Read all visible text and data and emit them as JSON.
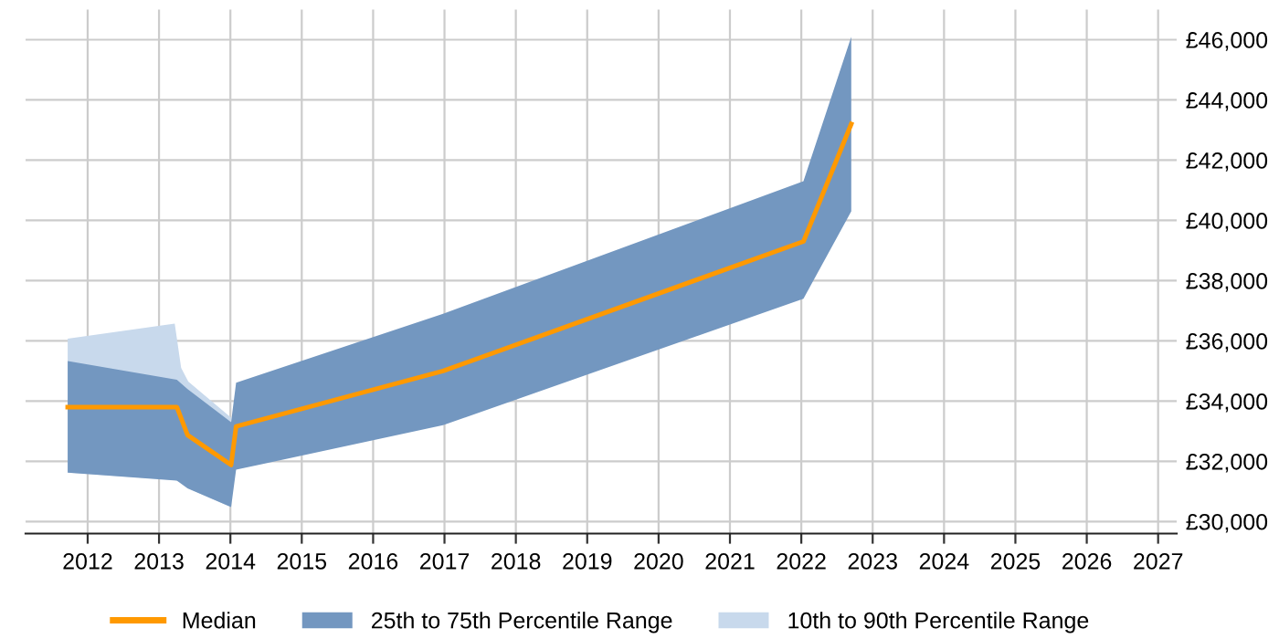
{
  "chart_data": {
    "type": "line",
    "series": [
      {
        "name": "10th to 90th Percentile Range",
        "type": "area",
        "color": "#c8d9ec",
        "x": [
          2011.72,
          2013.22,
          2013.31,
          2013.41,
          2014.01
        ],
        "values": [
          null,
          null,
          null,
          null,
          null
        ],
        "lower": [
          31620,
          31380,
          31300,
          31100,
          30480
        ],
        "upper": [
          36070,
          36570,
          35100,
          34650,
          33450
        ]
      },
      {
        "name": "25th to 75th Percentile Range",
        "type": "area",
        "color": "#7397c0",
        "x": [
          2011.72,
          2013.25,
          2013.4,
          2014.01,
          2014.08,
          2016.98,
          2022.03,
          2022.7
        ],
        "values": [
          null,
          null,
          null,
          null,
          null,
          null,
          null,
          null
        ],
        "lower": [
          31620,
          31360,
          31100,
          30480,
          31720,
          33200,
          37400,
          40300
        ],
        "upper": [
          35330,
          34710,
          34400,
          33300,
          34610,
          36900,
          41300,
          46100
        ]
      },
      {
        "name": "Median",
        "color": "#ff9900",
        "x": [
          2011.72,
          2013.25,
          2013.4,
          2014.01,
          2014.08,
          2016.98,
          2022.03,
          2022.7
        ],
        "values": [
          33800,
          33800,
          32870,
          31880,
          33160,
          35000,
          39300,
          43200
        ]
      }
    ],
    "xlim": [
      2011.13,
      2027.26
    ],
    "xticks": [
      2012,
      2013,
      2014,
      2015,
      2016,
      2017,
      2018,
      2019,
      2020,
      2021,
      2022,
      2023,
      2024,
      2025,
      2026,
      2027
    ],
    "ylim": [
      29600,
      47000
    ],
    "yticks": [
      {
        "value": 30000,
        "label": "£30,000"
      },
      {
        "value": 32000,
        "label": "£32,000"
      },
      {
        "value": 34000,
        "label": "£34,000"
      },
      {
        "value": 36000,
        "label": "£36,000"
      },
      {
        "value": 38000,
        "label": "£38,000"
      },
      {
        "value": 40000,
        "label": "£40,000"
      },
      {
        "value": 42000,
        "label": "£42,000"
      },
      {
        "value": 44000,
        "label": "£44,000"
      },
      {
        "value": 46000,
        "label": "£46,000"
      }
    ],
    "grid": true,
    "legend": "bottom"
  }
}
